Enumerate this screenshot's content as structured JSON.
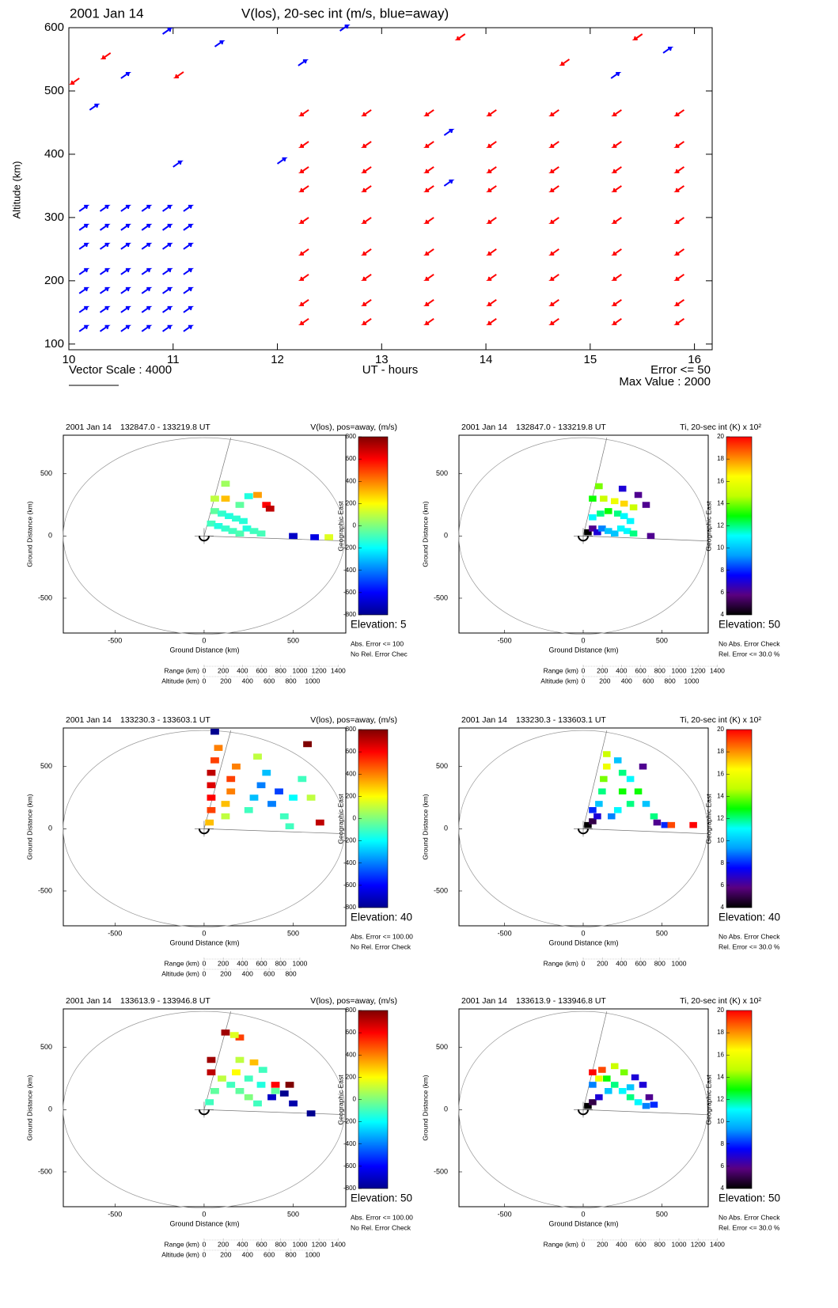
{
  "chart_data": [
    {
      "type": "quiver",
      "title": "2001 Jan 14",
      "subtitle": "V(los), 20-sec int (m/s, blue=away)",
      "ylabel": "Altitude (km)",
      "xlabel": "UT - hours",
      "annotations": [
        "Vector Scale : 4000",
        "Error <= 50",
        "Max Value : 2000"
      ],
      "xlim": [
        10,
        16.17
      ],
      "xticks": [
        10,
        11,
        12,
        13,
        14,
        15,
        16
      ],
      "ylim": [
        91,
        600
      ],
      "yticks": [
        100,
        200,
        300,
        400,
        500,
        600
      ],
      "series": [
        {
          "color": "#0000ff",
          "x": [
            10.1,
            10.3,
            10.5,
            10.7,
            10.9,
            11.1,
            10.1,
            10.3,
            10.5,
            10.7,
            10.9,
            11.1,
            10.1,
            10.3,
            10.5,
            10.7,
            10.9,
            11.1,
            10.1,
            10.3,
            10.5,
            10.7,
            10.9,
            11.1,
            10.1,
            10.3,
            10.5,
            10.7,
            10.9,
            11.1,
            10.1,
            10.3,
            10.5,
            10.7,
            10.9,
            11.1,
            10.1,
            10.3,
            10.5,
            10.7,
            10.9,
            11.1,
            10.2,
            10.5,
            10.9,
            11.4,
            12.2,
            12.6,
            13.6,
            13.6,
            15.7,
            15.2,
            11.0,
            12.0
          ],
          "y": [
            120,
            120,
            120,
            120,
            120,
            120,
            150,
            150,
            150,
            150,
            150,
            150,
            180,
            180,
            180,
            180,
            180,
            180,
            210,
            210,
            210,
            210,
            210,
            210,
            250,
            250,
            250,
            250,
            250,
            250,
            280,
            280,
            280,
            280,
            280,
            280,
            310,
            310,
            310,
            310,
            310,
            310,
            470,
            520,
            590,
            570,
            540,
            595,
            430,
            350,
            560,
            520,
            380,
            385
          ]
        },
        {
          "color": "#ff0000",
          "x": [
            12.3,
            12.9,
            13.5,
            14.1,
            14.7,
            15.3,
            15.9,
            12.3,
            12.9,
            13.5,
            14.1,
            14.7,
            15.3,
            15.9,
            12.3,
            12.9,
            13.5,
            14.1,
            14.7,
            15.3,
            15.9,
            12.3,
            12.9,
            13.5,
            14.1,
            14.7,
            15.3,
            15.9,
            12.3,
            12.9,
            13.5,
            14.1,
            14.7,
            15.3,
            15.9,
            12.3,
            12.9,
            13.5,
            14.1,
            14.7,
            15.3,
            15.9,
            12.3,
            12.9,
            13.5,
            14.1,
            14.7,
            15.3,
            15.9,
            12.3,
            12.9,
            13.5,
            14.1,
            14.7,
            15.3,
            15.9,
            12.3,
            12.9,
            13.5,
            14.1,
            14.7,
            15.3,
            15.9,
            10.1,
            10.4,
            11.1,
            13.8,
            14.8,
            15.5
          ],
          "y": [
            140,
            140,
            140,
            140,
            140,
            140,
            140,
            170,
            170,
            170,
            170,
            170,
            170,
            170,
            210,
            210,
            210,
            210,
            210,
            210,
            210,
            250,
            250,
            250,
            250,
            250,
            250,
            250,
            300,
            300,
            300,
            300,
            300,
            300,
            300,
            350,
            350,
            350,
            350,
            350,
            350,
            350,
            380,
            380,
            380,
            380,
            380,
            380,
            380,
            420,
            420,
            420,
            420,
            420,
            420,
            420,
            470,
            470,
            470,
            470,
            470,
            470,
            470,
            520,
            560,
            530,
            590,
            550,
            590
          ]
        }
      ]
    },
    {
      "type": "fan",
      "title": "2001 Jan 14",
      "time_range": "132847.0 - 133219.8 UT",
      "parameter": "V(los), pos=away, (m/s)",
      "xlabel": "Ground Distance (km)",
      "ylabel": "Ground Distance (km)",
      "xlim": [
        -790,
        795
      ],
      "ylim": [
        -780,
        810
      ],
      "xticks": [
        -500,
        0,
        500
      ],
      "yticks": [
        -500,
        0,
        500
      ],
      "colorbar_label": "Geographic East",
      "colorbar_lim": [
        -800,
        800
      ],
      "colorbar_ticks": [
        -800,
        -600,
        -400,
        -200,
        0,
        200,
        400,
        600,
        800
      ],
      "colormap": [
        "#00008f",
        "#0000ff",
        "#007fff",
        "#00ffff",
        "#7fff7f",
        "#ffff00",
        "#ff7f00",
        "#ff0000",
        "#7f0000"
      ],
      "elevation": "Elevation: 5",
      "notes": [
        "Abs. Error <= 100",
        "No Rel. Error Chec"
      ],
      "range_label": "Range (km)",
      "range_ticks": [
        0,
        200,
        400,
        600,
        800,
        1000,
        1200,
        1400
      ],
      "altitude_label": "Altitude (km)",
      "altitude_ticks": [
        0,
        200,
        400,
        600,
        800,
        1000
      ],
      "x": [
        40,
        80,
        120,
        160,
        200,
        240,
        280,
        320,
        60,
        100,
        140,
        180,
        220,
        60,
        120,
        200,
        250,
        300,
        350,
        370,
        120,
        500,
        620,
        700
      ],
      "y": [
        100,
        80,
        60,
        40,
        20,
        60,
        40,
        20,
        200,
        180,
        160,
        140,
        120,
        300,
        300,
        250,
        320,
        330,
        250,
        220,
        420,
        0,
        -10,
        -10
      ],
      "values": [
        -100,
        -150,
        -120,
        -100,
        -80,
        -150,
        -100,
        -90,
        -50,
        -120,
        -150,
        -130,
        -140,
        100,
        300,
        -50,
        -150,
        350,
        600,
        700,
        50,
        -700,
        -650,
        150
      ]
    },
    {
      "type": "fan",
      "title": "2001 Jan 14",
      "time_range": "132847.0 - 133219.8 UT",
      "parameter": "Ti, 20-sec int (K) x 10²",
      "xlabel": "Ground Distance (km)",
      "ylabel": "Ground Distance (km)",
      "xlim": [
        -790,
        795
      ],
      "ylim": [
        -780,
        810
      ],
      "xticks": [
        -500,
        0,
        500
      ],
      "yticks": [
        -500,
        0,
        500
      ],
      "colorbar_label": "Geographic East",
      "colorbar_lim": [
        4,
        20
      ],
      "colorbar_ticks": [
        4,
        6,
        8,
        10,
        12,
        14,
        16,
        18,
        20
      ],
      "colormap": [
        "#000000",
        "#5a0080",
        "#0000ff",
        "#00a0ff",
        "#00ffff",
        "#00ff00",
        "#c0ff00",
        "#ffff00",
        "#ff8000",
        "#ff0000"
      ],
      "elevation": "Elevation: 50",
      "notes": [
        "No Abs. Error Check",
        "Rel. Error <= 30.0 %"
      ],
      "range_label": "Range (km)",
      "range_ticks": [
        0,
        200,
        400,
        600,
        800,
        1000,
        1200,
        1400
      ],
      "altitude_label": "Altitude (km)",
      "altitude_ticks": [
        0,
        200,
        400,
        600,
        800,
        1000
      ],
      "x": [
        30,
        60,
        90,
        120,
        160,
        200,
        240,
        280,
        320,
        60,
        110,
        160,
        220,
        260,
        300,
        60,
        130,
        200,
        260,
        320,
        100,
        250,
        350,
        400,
        430
      ],
      "y": [
        30,
        60,
        30,
        60,
        40,
        20,
        60,
        40,
        20,
        150,
        180,
        200,
        180,
        160,
        120,
        300,
        300,
        280,
        260,
        230,
        400,
        380,
        330,
        250,
        0
      ],
      "values": [
        4,
        6,
        7,
        9,
        10,
        10,
        11,
        11,
        12,
        11,
        12,
        13,
        12,
        11,
        11,
        13,
        15,
        16,
        17,
        15,
        14,
        7,
        6,
        6,
        6
      ]
    },
    {
      "type": "fan",
      "title": "2001 Jan 14",
      "time_range": "133230.3 - 133603.1 UT",
      "parameter": "V(los), pos=away, (m/s)",
      "xlabel": "Ground Distance (km)",
      "ylabel": "Ground Distance (km)",
      "xlim": [
        -790,
        795
      ],
      "ylim": [
        -780,
        810
      ],
      "xticks": [
        -500,
        0,
        500
      ],
      "yticks": [
        -500,
        0,
        500
      ],
      "colorbar_label": "Geographic East",
      "colorbar_lim": [
        -800,
        800
      ],
      "colorbar_ticks": [
        -800,
        -600,
        -400,
        -200,
        0,
        200,
        400,
        600,
        800
      ],
      "colormap": [
        "#00008f",
        "#0000ff",
        "#007fff",
        "#00ffff",
        "#7fff7f",
        "#ffff00",
        "#ff7f00",
        "#ff0000",
        "#7f0000"
      ],
      "elevation": "Elevation: 40",
      "notes": [
        "Abs. Error <= 100.00",
        "No Rel. Error Check"
      ],
      "range_label": "Range (km)",
      "range_ticks": [
        0,
        200,
        400,
        600,
        800,
        1000
      ],
      "altitude_label": "Altitude (km)",
      "altitude_ticks": [
        0,
        200,
        400,
        600,
        800
      ],
      "x": [
        30,
        40,
        40,
        40,
        40,
        60,
        80,
        60,
        120,
        120,
        150,
        150,
        180,
        250,
        280,
        320,
        350,
        380,
        420,
        450,
        500,
        550,
        600,
        650,
        480,
        580,
        300
      ],
      "y": [
        50,
        150,
        250,
        350,
        450,
        550,
        650,
        780,
        100,
        200,
        300,
        400,
        500,
        150,
        250,
        350,
        450,
        200,
        300,
        100,
        250,
        400,
        250,
        50,
        20,
        680,
        580
      ],
      "values": [
        300,
        500,
        600,
        650,
        700,
        500,
        400,
        -800,
        100,
        300,
        400,
        500,
        400,
        -100,
        -300,
        -400,
        -300,
        -400,
        -500,
        -100,
        -200,
        -100,
        100,
        700,
        -100,
        800,
        100
      ]
    },
    {
      "type": "fan",
      "title": "2001 Jan 14",
      "time_range": "133230.3 - 133603.1 UT",
      "parameter": "Ti, 20-sec int (K) x 10²",
      "xlabel": "Ground Distance (km)",
      "ylabel": "Ground Distance (km)",
      "xlim": [
        -790,
        795
      ],
      "ylim": [
        -780,
        810
      ],
      "xticks": [
        -500,
        0,
        500
      ],
      "yticks": [
        -500,
        0,
        500
      ],
      "colorbar_label": "Geographic East",
      "colorbar_lim": [
        4,
        20
      ],
      "colorbar_ticks": [
        4,
        6,
        8,
        10,
        12,
        14,
        16,
        18,
        20
      ],
      "colormap": [
        "#000000",
        "#5a0080",
        "#0000ff",
        "#00a0ff",
        "#00ffff",
        "#00ff00",
        "#c0ff00",
        "#ffff00",
        "#ff8000",
        "#ff0000"
      ],
      "elevation": "Elevation: 40",
      "notes": [
        "No Abs. Error Check",
        "Rel. Error <= 30.0 %"
      ],
      "range_label": "Range (km)",
      "range_ticks": [
        0,
        200,
        400,
        600,
        800,
        1000
      ],
      "x": [
        30,
        60,
        90,
        60,
        100,
        120,
        130,
        150,
        150,
        220,
        250,
        300,
        250,
        300,
        350,
        380,
        400,
        450,
        470,
        520,
        560,
        700,
        180,
        220
      ],
      "y": [
        30,
        60,
        100,
        150,
        200,
        300,
        400,
        500,
        600,
        550,
        450,
        400,
        300,
        200,
        300,
        500,
        200,
        100,
        50,
        30,
        30,
        30,
        100,
        150
      ],
      "values": [
        4,
        5,
        7,
        8,
        10,
        12,
        14,
        16,
        15,
        10,
        12,
        11,
        13,
        12,
        13,
        6,
        10,
        12,
        6,
        8,
        19,
        20,
        9,
        11
      ]
    },
    {
      "type": "fan",
      "title": "2001 Jan 14",
      "time_range": "133613.9 - 133946.8 UT",
      "parameter": "V(los), pos=away, (m/s)",
      "xlabel": "Ground Distance (km)",
      "ylabel": "Ground Distance (km)",
      "xlim": [
        -790,
        795
      ],
      "ylim": [
        -780,
        810
      ],
      "xticks": [
        -500,
        0,
        500
      ],
      "yticks": [
        -500,
        0,
        500
      ],
      "colorbar_label": "Geographic East",
      "colorbar_lim": [
        -800,
        800
      ],
      "colorbar_ticks": [
        -800,
        -600,
        -400,
        -200,
        0,
        200,
        400,
        600,
        800
      ],
      "colormap": [
        "#00008f",
        "#0000ff",
        "#007fff",
        "#00ffff",
        "#7fff7f",
        "#ffff00",
        "#ff7f00",
        "#ff0000",
        "#7f0000"
      ],
      "elevation": "Elevation: 50",
      "notes": [
        "Abs. Error <= 100.00",
        "No Rel. Error Check"
      ],
      "range_label": "Range (km)",
      "range_ticks": [
        0,
        200,
        400,
        600,
        800,
        1000,
        1200,
        1400
      ],
      "altitude_label": "Altitude (km)",
      "altitude_ticks": [
        0,
        200,
        400,
        600,
        800,
        1000
      ],
      "x": [
        30,
        60,
        40,
        40,
        100,
        150,
        200,
        250,
        300,
        180,
        250,
        320,
        400,
        200,
        280,
        330,
        400,
        480,
        500,
        450,
        600,
        120,
        200,
        170,
        380
      ],
      "y": [
        60,
        150,
        300,
        400,
        250,
        200,
        150,
        100,
        50,
        300,
        250,
        200,
        150,
        400,
        380,
        320,
        200,
        200,
        50,
        130,
        -30,
        620,
        580,
        600,
        100
      ],
      "values": [
        -100,
        -50,
        700,
        750,
        100,
        -100,
        -50,
        0,
        -100,
        200,
        -100,
        -150,
        -50,
        100,
        300,
        -100,
        600,
        800,
        -750,
        -800,
        -800,
        750,
        500,
        150,
        -700
      ]
    },
    {
      "type": "fan",
      "title": "2001 Jan 14",
      "time_range": "133613.9 - 133946.8 UT",
      "parameter": "Ti, 20-sec int (K) x 10²",
      "xlabel": "Ground Distance (km)",
      "ylabel": "Ground Distance (km)",
      "xlim": [
        -790,
        795
      ],
      "ylim": [
        -780,
        810
      ],
      "xticks": [
        -500,
        0,
        500
      ],
      "yticks": [
        -500,
        0,
        500
      ],
      "colorbar_label": "Geographic East",
      "colorbar_lim": [
        4,
        20
      ],
      "colorbar_ticks": [
        4,
        6,
        8,
        10,
        12,
        14,
        16,
        18,
        20
      ],
      "colormap": [
        "#000000",
        "#5a0080",
        "#0000ff",
        "#00a0ff",
        "#00ffff",
        "#00ff00",
        "#c0ff00",
        "#ffff00",
        "#ff8000",
        "#ff0000"
      ],
      "elevation": "Elevation: 50",
      "notes": [
        "No Abs. Error Check",
        "Rel. Error <= 30.0 %"
      ],
      "range_label": "Range (km)",
      "range_ticks": [
        0,
        200,
        400,
        600,
        800,
        1000,
        1200,
        1400
      ],
      "x": [
        30,
        60,
        100,
        60,
        60,
        120,
        100,
        150,
        200,
        250,
        300,
        350,
        400,
        200,
        260,
        330,
        380,
        420,
        450,
        160,
        300
      ],
      "y": [
        30,
        60,
        100,
        200,
        300,
        320,
        250,
        250,
        200,
        150,
        100,
        60,
        30,
        350,
        300,
        260,
        200,
        100,
        40,
        150,
        180
      ],
      "values": [
        4,
        5,
        7,
        9,
        20,
        19,
        16,
        13,
        12,
        11,
        12,
        11,
        9,
        15,
        14,
        7,
        7,
        6,
        8,
        10,
        10
      ]
    }
  ]
}
